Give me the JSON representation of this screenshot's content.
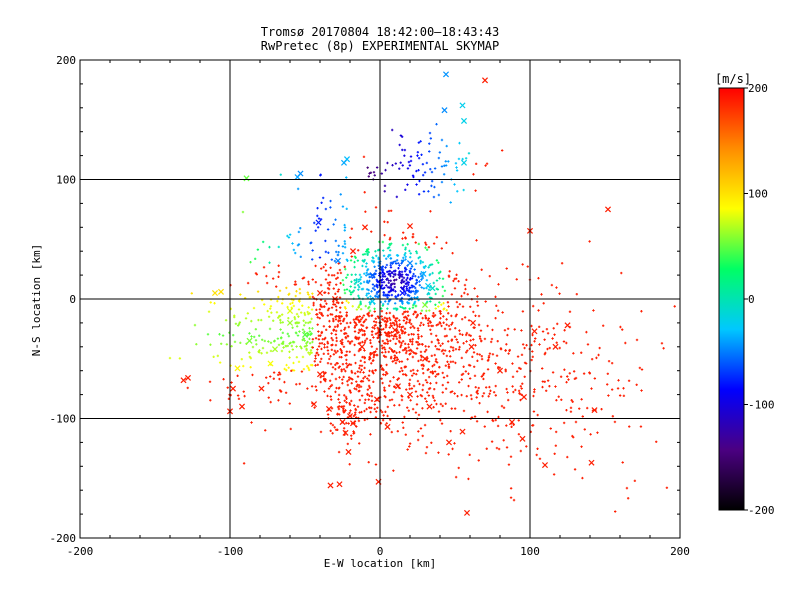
{
  "chart_data": {
    "type": "scatter",
    "title": "Tromsø 20170804 18:42:00—18:43:43",
    "subtitle": "RwPretec (8p) EXPERIMENTAL SKYMAP",
    "xlabel": "E-W location [km]",
    "ylabel": "N-S location [km]",
    "xlim": [
      -200,
      200
    ],
    "ylim": [
      -200,
      200
    ],
    "xticks": [
      "-200",
      "-100",
      "0",
      "100",
      "200"
    ],
    "yticks": [
      "-200",
      "-100",
      "0",
      "100",
      "200"
    ],
    "grid": true,
    "colorbar": {
      "unit": "[m/s]",
      "range": [
        -200,
        200
      ],
      "ticks": [
        "-200",
        "-100",
        "0",
        "100",
        "200"
      ],
      "colors": [
        "#000000",
        "#4b0082",
        "#0000ff",
        "#00c8ff",
        "#00ff64",
        "#ffff00",
        "#ff8c00",
        "#ff0000"
      ]
    },
    "series": [
      {
        "marker": "x",
        "points": [
          [
            44,
            188
          ],
          [
            70,
            183
          ],
          [
            55,
            162
          ],
          [
            56,
            149
          ],
          [
            43,
            158
          ],
          [
            -22,
            117
          ],
          [
            -24,
            114
          ],
          [
            -53,
            105
          ],
          [
            -55,
            102
          ],
          [
            -89,
            101
          ],
          [
            56,
            114
          ],
          [
            -41,
            64
          ],
          [
            20,
            61
          ],
          [
            100,
            57
          ],
          [
            152,
            75
          ],
          [
            -18,
            40
          ],
          [
            -28,
            32
          ],
          [
            -5,
            20
          ],
          [
            8,
            22
          ],
          [
            29,
            21
          ],
          [
            -106,
            6
          ],
          [
            -110,
            5
          ],
          [
            32,
            11
          ],
          [
            35,
            9
          ],
          [
            -60,
            -20
          ],
          [
            -70,
            -42
          ],
          [
            -98,
            -75
          ],
          [
            -95,
            -58
          ],
          [
            -128,
            -66
          ],
          [
            -131,
            -68
          ],
          [
            -79,
            -75
          ],
          [
            -92,
            -90
          ],
          [
            -100,
            -94
          ],
          [
            -34,
            -92
          ],
          [
            -20,
            -98
          ],
          [
            -18,
            -104
          ],
          [
            -25,
            -103
          ],
          [
            -23,
            -112
          ],
          [
            5,
            -107
          ],
          [
            -21,
            -128
          ],
          [
            -33,
            -156
          ],
          [
            -27,
            -155
          ],
          [
            -1,
            -153
          ],
          [
            58,
            -179
          ],
          [
            103,
            -27
          ],
          [
            125,
            -22
          ],
          [
            117,
            -40
          ],
          [
            96,
            -82
          ],
          [
            143,
            -93
          ],
          [
            141,
            -137
          ],
          [
            110,
            -139
          ],
          [
            95,
            -117
          ],
          [
            88,
            -103
          ],
          [
            55,
            -111
          ],
          [
            46,
            -120
          ],
          [
            33,
            -90
          ],
          [
            20,
            -80
          ],
          [
            62,
            -20
          ],
          [
            -60,
            -10
          ],
          [
            -12,
            -40
          ],
          [
            10,
            -26
          ],
          [
            -40,
            -63
          ],
          [
            -73,
            -54
          ],
          [
            -87,
            -35
          ],
          [
            -30,
            0
          ],
          [
            15,
            5
          ],
          [
            -5,
            -2
          ],
          [
            20,
            30
          ],
          [
            -44,
            -88
          ],
          [
            61,
            -40
          ],
          [
            -10,
            60
          ],
          [
            -40,
            5
          ],
          [
            80,
            -60
          ],
          [
            -50,
            -30
          ],
          [
            30,
            -50
          ],
          [
            30,
            -5
          ],
          [
            -2,
            -84
          ],
          [
            12,
            -73
          ]
        ]
      }
    ]
  }
}
